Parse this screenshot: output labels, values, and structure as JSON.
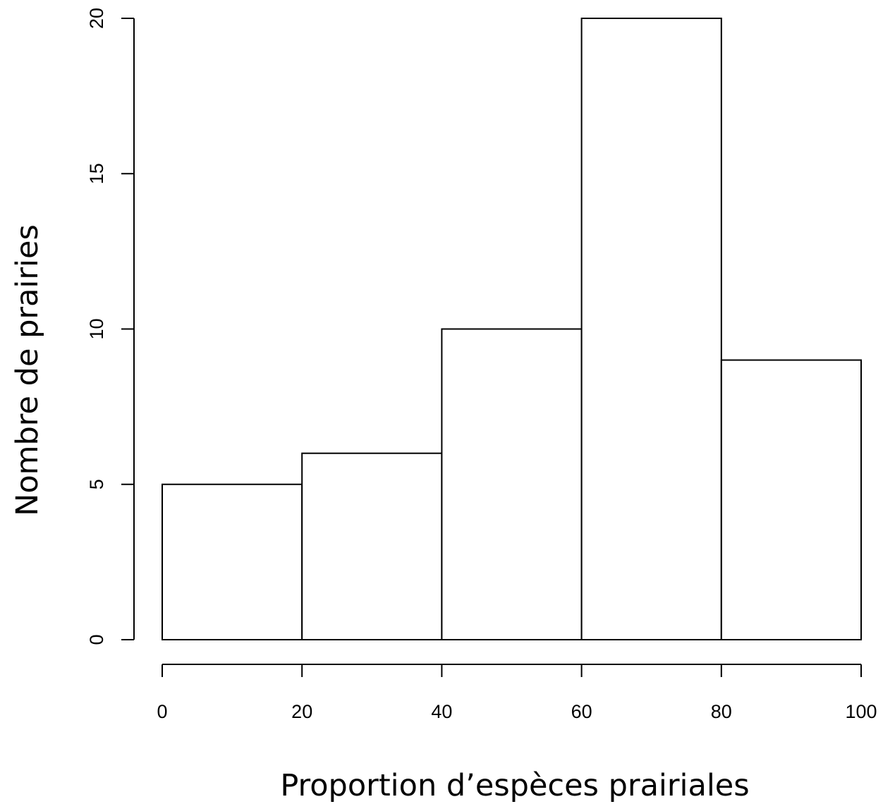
{
  "chart_data": {
    "type": "bar",
    "title": "",
    "xlabel": "Proportion d’espèces prairiales",
    "ylabel": "Nombre de prairies",
    "bins": [
      {
        "from": 0,
        "to": 20,
        "count": 5
      },
      {
        "from": 20,
        "to": 40,
        "count": 6
      },
      {
        "from": 40,
        "to": 60,
        "count": 10
      },
      {
        "from": 60,
        "to": 80,
        "count": 20
      },
      {
        "from": 80,
        "to": 100,
        "count": 9
      }
    ],
    "xlim": [
      0,
      100
    ],
    "ylim": [
      0,
      20
    ],
    "xticks": [
      0,
      20,
      40,
      60,
      80,
      100
    ],
    "yticks": [
      0,
      5,
      10,
      15,
      20
    ],
    "grid": false,
    "legend": "none"
  }
}
